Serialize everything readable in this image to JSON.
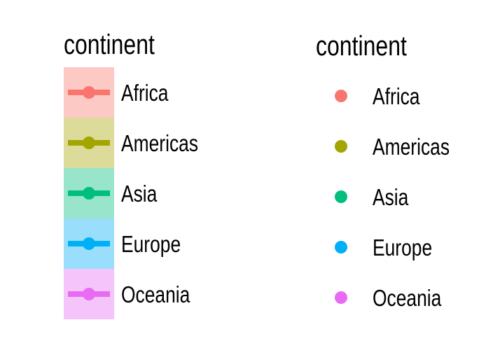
{
  "chart_data": {
    "type": "legend",
    "legends": [
      {
        "title": "continent",
        "key_style": "line-point-with-fill",
        "entries": [
          {
            "label": "Africa",
            "color": "#F8766D",
            "fill": "#FDC9C5"
          },
          {
            "label": "Americas",
            "color": "#A3A500",
            "fill": "#DDDB99"
          },
          {
            "label": "Asia",
            "color": "#00BF7D",
            "fill": "#99E5CB"
          },
          {
            "label": "Europe",
            "color": "#00B0F6",
            "fill": "#99DFFB"
          },
          {
            "label": "Oceania",
            "color": "#E76BF3",
            "fill": "#F5C4FA"
          }
        ]
      },
      {
        "title": "continent",
        "key_style": "point",
        "entries": [
          {
            "label": "Africa",
            "color": "#F8766D"
          },
          {
            "label": "Americas",
            "color": "#A3A500"
          },
          {
            "label": "Asia",
            "color": "#00BF7D"
          },
          {
            "label": "Europe",
            "color": "#00B0F6"
          },
          {
            "label": "Oceania",
            "color": "#E76BF3"
          }
        ]
      }
    ]
  }
}
